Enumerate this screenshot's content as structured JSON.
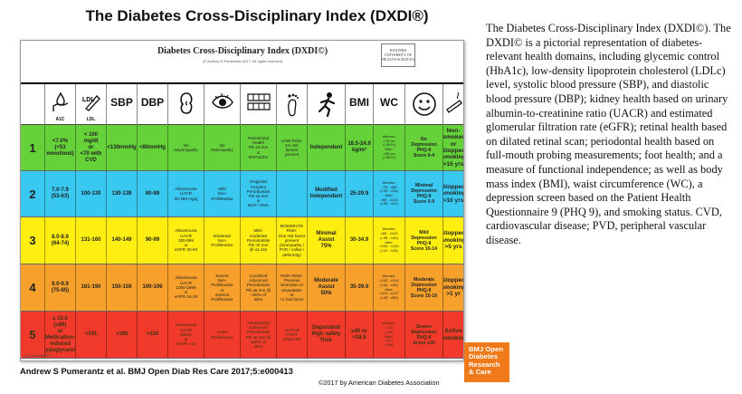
{
  "figure_title": "The Diabetes Cross-Disciplinary Index (DXDI®)",
  "card": {
    "title": "Diabetes Cross-Disciplinary Index (DXDI©)",
    "subtitle": "(© Andrew S Pumerantz 2017. All rights reserved)",
    "logo": "WESTERN UNIVERSITY OF HEALTH SCIENCES",
    "footer": "DXDI_RevMay2017"
  },
  "columns": [
    {
      "key": "grade",
      "label": "",
      "icon": ""
    },
    {
      "key": "a1c",
      "label": "A1C",
      "icon": "hand-droplet-icon"
    },
    {
      "key": "ldl",
      "label": "LDL",
      "icon": "ldl-vial-icon"
    },
    {
      "key": "sbp",
      "label": "SBP",
      "icon": ""
    },
    {
      "key": "dbp",
      "label": "DBP",
      "icon": ""
    },
    {
      "key": "kidney",
      "label": "",
      "icon": "kidney-icon"
    },
    {
      "key": "eye",
      "label": "",
      "icon": "eye-icon"
    },
    {
      "key": "teeth",
      "label": "",
      "icon": "teeth-icon"
    },
    {
      "key": "foot",
      "label": "",
      "icon": "foot-icon"
    },
    {
      "key": "activity",
      "label": "",
      "icon": "running-figure-icon"
    },
    {
      "key": "bmi",
      "label": "BMI",
      "icon": ""
    },
    {
      "key": "wc",
      "label": "WC",
      "icon": ""
    },
    {
      "key": "depression",
      "label": "",
      "icon": "smiley-face-icon"
    },
    {
      "key": "smoking",
      "label": "",
      "icon": "cigarette-icon"
    }
  ],
  "rows": [
    {
      "grade": "1",
      "color": "#66d23a",
      "cells": [
        "<7.0%\n(<53 mmol/mol)",
        "< 100 mg/dl\nor\n<70 with CVD",
        "<130mmHg",
        "<80mmHg",
        "No\nNephropathy",
        "No\nRetinopathy",
        "Periodontal\nHealth\nPD ≤3 mm\n&\nBOP≤25%",
        "LOW RISK:\nNo risk\nfactors\npresent",
        "Independent",
        "18.5-24.9\nkg/m²",
        "Women:\n<76 cm\n(<30 in)\nMen:\n<89 cm\n(<35 in)",
        "No\nDepression\nPHQ-9\nScore 0-4",
        "Non-\nsmoker\nor\nStopped\nsmoking\n>15 yrs"
      ]
    },
    {
      "grade": "2",
      "color": "#38c8f0",
      "cells": [
        "7.0-7.9\n(53-63)",
        "100-130",
        "130-139",
        "80-89",
        "Albuminuria\nUACR\n30-299 mg/g",
        "Mild\nNon-\nProliferative",
        "Gingivitis/\nIncipient\nPeriodontitis\nPD ≤4 mm\n&\nBOP >25%",
        "",
        "Modified\nIndependent",
        "25-29.9",
        "Women:\n>76 - ≤89\n(>30 - ≤35)\nMen:\n>89 - ≤104\n(>35 - ≤41)",
        "Minimal\nDepression\nPHQ-9\nScore 5-9",
        "Stopped\nsmoking\n>10 yrs"
      ]
    },
    {
      "grade": "3",
      "color": "#ffee10",
      "cells": [
        "8.0-8.9\n(64-74)",
        "131-160",
        "140-149",
        "90-99",
        "Albuminuria\nUACR\n300-999\nor\neGFR 30-60",
        "Moderate\nNon-\nProliferative",
        "Mild-\nmoderate\nPeriodontitis\nPD >5 mm\n@ ≤1 site",
        "MODERATE\nRISK:\nOne risk factor\npresent\n(neuropathy /\nPVD / callus /\ndeformity)",
        "Minimal\nAssist\n75%",
        "30-34.9",
        "Women:\n>89 - ≤102\n(>35 - ≤40)\nMen:\n>104 - ≤114\n(>41 - ≤45)",
        "Mild\nDepression\nPHQ-9\nScore 10-14",
        "Stopped\nsmoking\n>5 yrs"
      ]
    },
    {
      "grade": "4",
      "color": "#f7a02c",
      "cells": [
        "9.0-9.9\n(75-85)",
        "161-190",
        "150-159",
        "100-109",
        "Albuminuria\nUACR\n1000-2999\nor\neGFR 15-29",
        "Severe\nNon-\nProliferative\nor\nInactive\nProliferative",
        "Localized\nAdvanced\nPeriodontitis\nPD ≥6 mm @\n<30% of\nsites",
        "HIGH RISK:\nPrevious\nulceration or\namputation\nor\n>1 risk factor",
        "Moderate\nAssist\n50%",
        "35-39.9",
        "Women:\n>102 - ≤114\n(>40 - ≤45)\nMen:\n>114 - ≤127\n(>45 - ≤50)",
        "Moderate\nDepression\nPHQ-9\nScore 15-19",
        "Stopped\nsmoking\n>1 yr"
      ]
    },
    {
      "grade": "5",
      "color": "#f23a2c",
      "cells": [
        "≥ 10.0\n(≥86)\nor\nMedication-\ninduced\nhypoglycemia",
        ">191",
        ">160",
        ">110",
        "Albuminuria\nUACR\n≥3000\nor\neGFR <15",
        "Active\nProliferative",
        "Generalized\nAdvanced\nPeriodontitis\nPD ≥6 mm @\n≥30% of\nsites",
        "ACTIVE\nFOOT\nDISEASE",
        "Dependent\nHigh safety\nRisk",
        "≥40 or\n<18.5",
        "Women:\n>114\n(>45)\nMen:\n>127\n(>50)",
        "Severe\nDepression\nPHQ-9\nScore ≥20",
        "Active\nsmoker"
      ]
    }
  ],
  "citation": "Andrew S Pumerantz et al. BMJ Open Diab Res Care 2017;5:e000413",
  "copyright": "©2017 by American Diabetes Association",
  "caption": "The Diabetes Cross-Disciplinary Index (DXDI©). The DXDI© is a pictorial representation of diabetes-relevant health domains, including glycemic control (HbA1c), low-density lipoprotein cholesterol (LDLc) level, systolic blood pressure (SBP), and diastolic blood pressure (DBP); kidney health based on urinary albumin-to-creatinine ratio (UACR) and estimated glomerular filtration rate (eGFR); retinal health based on dilated retinal scan; periodontal health based on full-mouth probing measurements; foot health; and a measure of functional independence; as well as body mass index (BMI), waist circumference (WC), a depression screen based on the Patient Health Questionnaire 9 (PHQ 9), and smoking status. CVD, cardiovascular disease; PVD, peripheral vascular disease.",
  "journal_badge": [
    "BMJ Open",
    "Diabetes",
    "Research",
    "& Care"
  ]
}
